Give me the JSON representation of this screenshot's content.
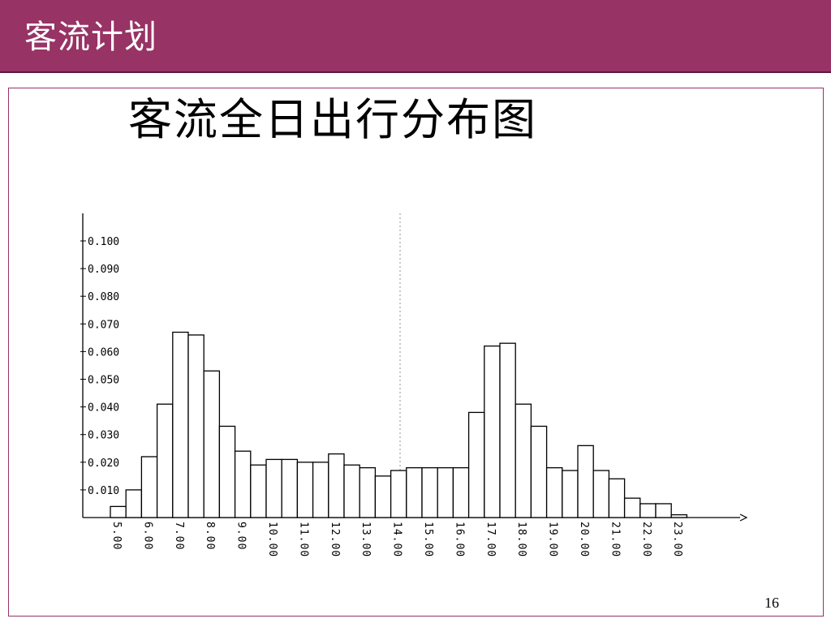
{
  "slide": {
    "header_title": "客流计划",
    "page_number": "16",
    "header_color": "#973365"
  },
  "chart_data": {
    "type": "bar",
    "title": "客流全日出行分布图",
    "xlabel": "",
    "ylabel": "",
    "ylim": [
      0,
      0.1
    ],
    "y_ticks": [
      "0.100",
      "0.090",
      "0.080",
      "0.070",
      "0.060",
      "0.050",
      "0.040",
      "0.030",
      "0.020",
      "0.010"
    ],
    "x_tick_labels": [
      "5.00",
      "6.00",
      "7.00",
      "8.00",
      "9.00",
      "10.00",
      "11.00",
      "12.00",
      "13.00",
      "14.00",
      "15.00",
      "16.00",
      "17.00",
      "18.00",
      "19.00",
      "20.00",
      "21.00",
      "22.00",
      "23.00"
    ],
    "x_start": 5.0,
    "bin_width": 0.5,
    "values": [
      0.004,
      0.01,
      0.022,
      0.041,
      0.067,
      0.066,
      0.053,
      0.033,
      0.024,
      0.019,
      0.021,
      0.021,
      0.02,
      0.02,
      0.023,
      0.019,
      0.018,
      0.015,
      0.017,
      0.018,
      0.018,
      0.018,
      0.018,
      0.038,
      0.062,
      0.063,
      0.041,
      0.033,
      0.018,
      0.017,
      0.026,
      0.017,
      0.014,
      0.007,
      0.005,
      0.005,
      0.001
    ],
    "grid": false,
    "bar_fill": "#ffffff",
    "bar_stroke": "#000000"
  }
}
